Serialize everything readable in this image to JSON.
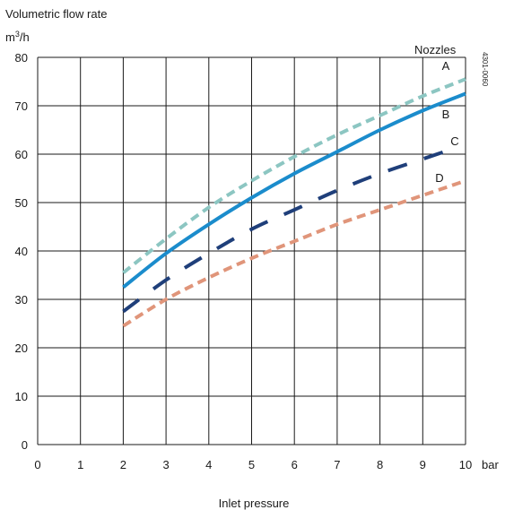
{
  "chart_data": {
    "type": "line",
    "ylabel_line1": "Volumetric flow rate",
    "ylabel_unit": "m",
    "ylabel_unit_sup": "3",
    "ylabel_unit_tail": "/h",
    "xlabel": "Inlet pressure",
    "x_unit": "bar",
    "legend_title": "Nozzles",
    "figure_code": "4301-0060",
    "xlim": [
      0,
      10
    ],
    "ylim": [
      0,
      80
    ],
    "x_ticks": [
      0,
      1,
      2,
      3,
      4,
      5,
      6,
      7,
      8,
      9,
      10
    ],
    "y_ticks": [
      0,
      10,
      20,
      30,
      40,
      50,
      60,
      70,
      80
    ],
    "grid": true,
    "series": [
      {
        "name": "A",
        "color": "#8cc6c2",
        "style": "dashed",
        "x": [
          2,
          3,
          4,
          5,
          6,
          7,
          8,
          9,
          10
        ],
        "y": [
          35.5,
          42.5,
          49,
          54.5,
          59.5,
          64,
          68,
          72,
          75.5
        ]
      },
      {
        "name": "B",
        "color": "#1b8ccc",
        "style": "solid",
        "x": [
          2,
          3,
          4,
          5,
          6,
          7,
          8,
          9,
          10
        ],
        "y": [
          32.5,
          39.5,
          45.5,
          51,
          56,
          60.5,
          65,
          69,
          72.5
        ]
      },
      {
        "name": "C",
        "color": "#1f3f7a",
        "style": "longdash",
        "x": [
          2,
          3,
          4,
          5,
          6,
          7,
          8,
          9,
          9.5
        ],
        "y": [
          27.5,
          34,
          39.5,
          44.5,
          48.5,
          52.5,
          56,
          59,
          60.5
        ]
      },
      {
        "name": "D",
        "color": "#e0957a",
        "style": "dashed",
        "x": [
          2,
          3,
          4,
          5,
          6,
          7,
          8,
          9,
          10
        ],
        "y": [
          24.5,
          30,
          34.5,
          38.5,
          42,
          45.5,
          48.5,
          51.5,
          54.5
        ]
      }
    ]
  }
}
